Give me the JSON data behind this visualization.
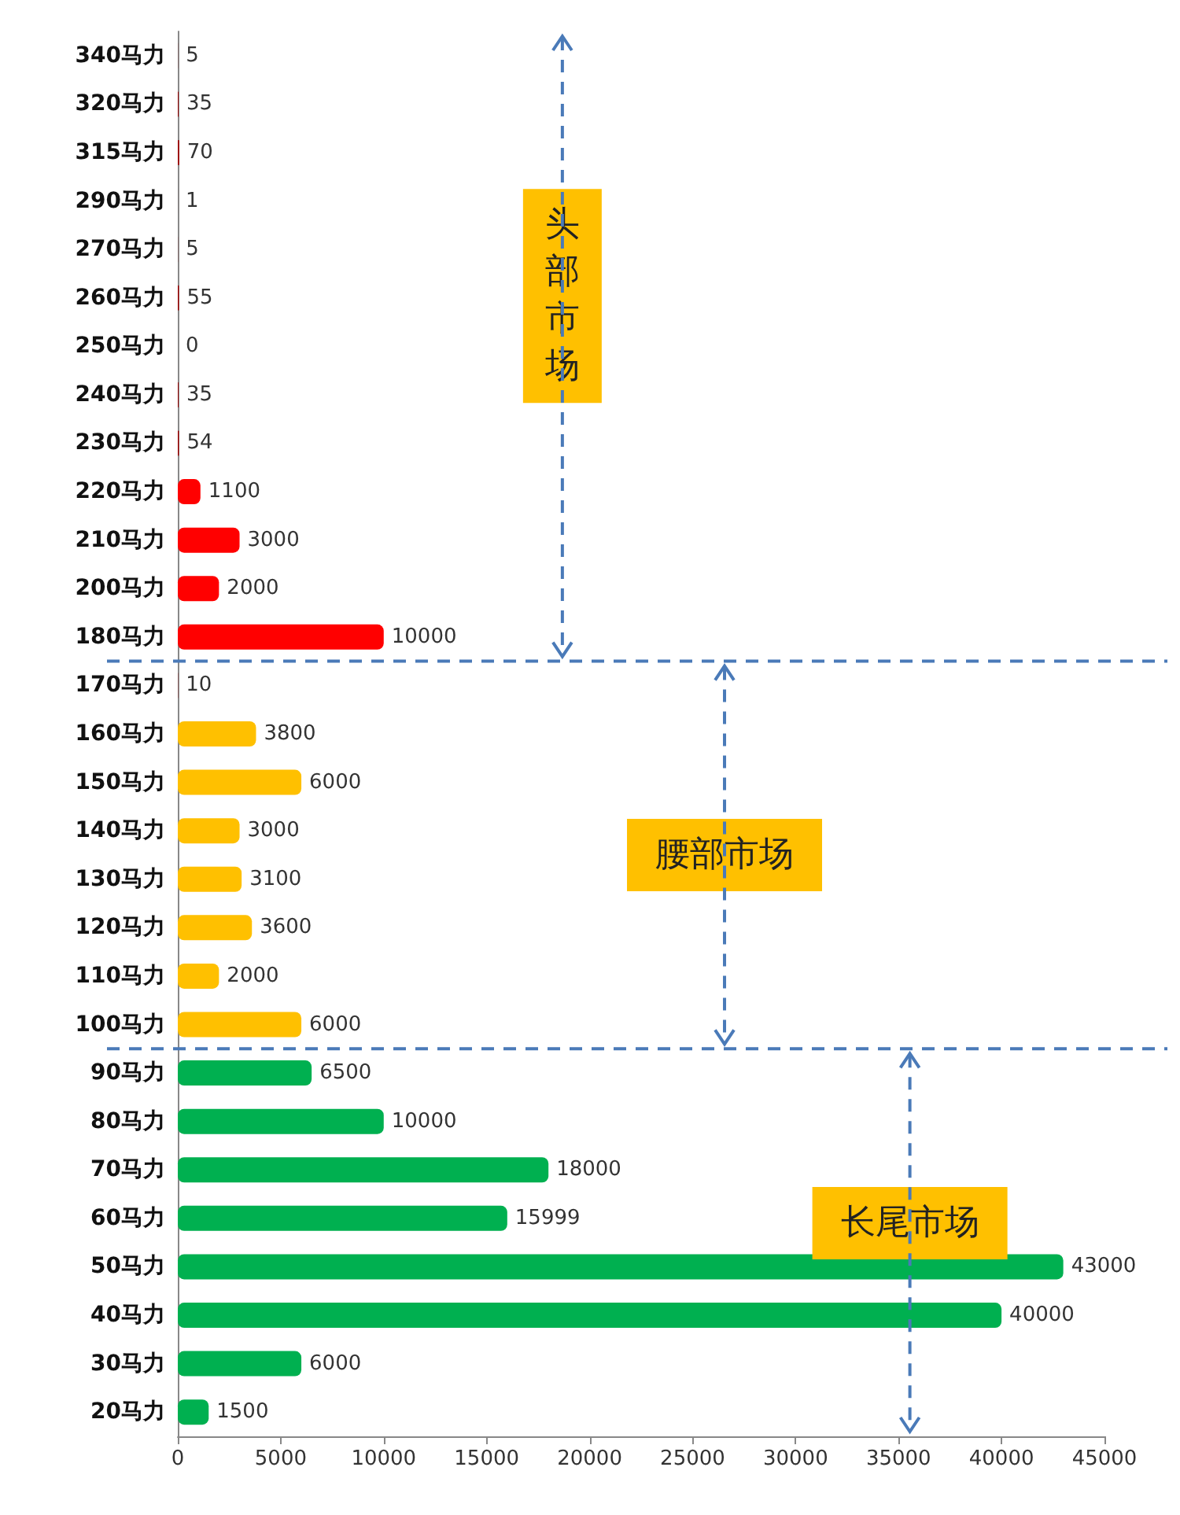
{
  "chart_data": {
    "type": "bar",
    "orientation": "horizontal",
    "categories": [
      "340马力",
      "320马力",
      "315马力",
      "290马力",
      "270马力",
      "260马力",
      "250马力",
      "240马力",
      "230马力",
      "220马力",
      "210马力",
      "200马力",
      "180马力",
      "170马力",
      "160马力",
      "150马力",
      "140马力",
      "130马力",
      "120马力",
      "110马力",
      "100马力",
      "90马力",
      "80马力",
      "70马力",
      "60马力",
      "50马力",
      "40马力",
      "30马力",
      "20马力"
    ],
    "values": [
      5,
      35,
      70,
      1,
      5,
      55,
      0,
      35,
      54,
      1100,
      3000,
      2000,
      10000,
      10,
      3800,
      6000,
      3000,
      3100,
      3600,
      2000,
      6000,
      6500,
      10000,
      18000,
      15999,
      43000,
      40000,
      6000,
      1500
    ],
    "colors": [
      "#a00000",
      "#a00000",
      "#a00000",
      "#a00000",
      "#a00000",
      "#a00000",
      "#a00000",
      "#a00000",
      "#a00000",
      "#ff0000",
      "#ff0000",
      "#ff0000",
      "#ff0000",
      "#a00000",
      "#ffc000",
      "#ffc000",
      "#ffc000",
      "#ffc000",
      "#ffc000",
      "#ffc000",
      "#ffc000",
      "#00b050",
      "#00b050",
      "#00b050",
      "#00b050",
      "#00b050",
      "#00b050",
      "#00b050",
      "#00b050"
    ],
    "xlim": [
      0,
      45000
    ],
    "xticks": [
      0,
      5000,
      10000,
      15000,
      20000,
      25000,
      30000,
      35000,
      40000,
      45000
    ],
    "data_labels": true,
    "annotations": [
      "头部市场",
      "腰部市场",
      "长尾市场"
    ]
  }
}
